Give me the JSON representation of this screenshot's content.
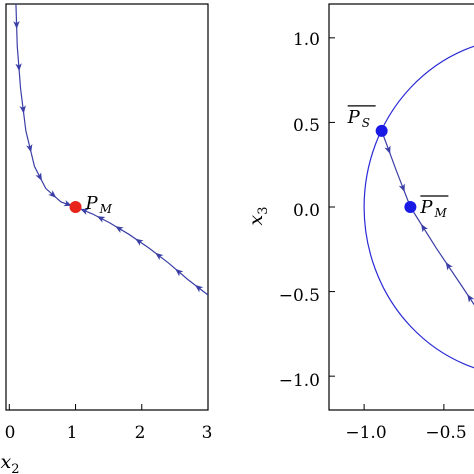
{
  "chart_data": [
    {
      "type": "line",
      "xlabel": "x2",
      "ylabel": "",
      "xlim": [
        -0.05,
        3.0
      ],
      "ylim": [
        -1.2,
        1.2
      ],
      "xticks": [
        "0",
        "1",
        "2",
        "3"
      ],
      "yticks": [],
      "series": [
        {
          "x": [
            0.1,
            0.12,
            0.17,
            0.25,
            0.38,
            0.55,
            0.78,
            1.0
          ],
          "y": [
            1.2,
            0.95,
            0.7,
            0.45,
            0.24,
            0.11,
            0.03,
            0.0
          ],
          "arrows": "toward-end"
        },
        {
          "x": [
            3.0,
            2.7,
            2.4,
            2.1,
            1.8,
            1.5,
            1.25,
            1.0
          ],
          "y": [
            -0.52,
            -0.43,
            -0.33,
            -0.24,
            -0.16,
            -0.09,
            -0.04,
            0.0
          ],
          "arrows": "toward-end"
        }
      ],
      "points": [
        {
          "x": 1.0,
          "y": 0.0,
          "color": "#e8231c",
          "label": "P",
          "sub": "M",
          "bar": false
        }
      ],
      "colors": {
        "curve": "#3b3fa6",
        "arrow": "#3b3fa6"
      }
    },
    {
      "type": "line",
      "xlabel": "",
      "ylabel": "x3",
      "xlim": [
        -1.22,
        -0.28
      ],
      "ylim": [
        -1.2,
        1.2
      ],
      "xticks": [
        "−1.0",
        "−0.5"
      ],
      "xtick_values": [
        -1.0,
        -0.5
      ],
      "yticks": [
        "1.0",
        "0.5",
        "0.0",
        "−0.5",
        "−1.0"
      ],
      "ytick_values": [
        1.0,
        0.5,
        0.0,
        -0.5,
        -1.0
      ],
      "circle": {
        "cx": 0.0,
        "cy": 0.0,
        "r": 1.0,
        "color": "#2b2bd6"
      },
      "series": [
        {
          "x": [
            -0.89,
            -0.8,
            -0.71
          ],
          "y": [
            0.45,
            0.22,
            0.0
          ],
          "arrows": "toward-end"
        },
        {
          "x": [
            -0.28,
            -0.4,
            -0.55,
            -0.71
          ],
          "y": [
            -0.62,
            -0.45,
            -0.24,
            0.0
          ],
          "arrows": "toward-end"
        }
      ],
      "points": [
        {
          "x": -0.89,
          "y": 0.45,
          "color": "#1a1ae6",
          "label": "P",
          "sub": "S",
          "bar": true
        },
        {
          "x": -0.71,
          "y": 0.0,
          "color": "#1a1ae6",
          "label": "P",
          "sub": "M",
          "bar": true
        }
      ],
      "colors": {
        "curve": "#3b3fa6",
        "arrow": "#3b3fa6"
      }
    }
  ]
}
